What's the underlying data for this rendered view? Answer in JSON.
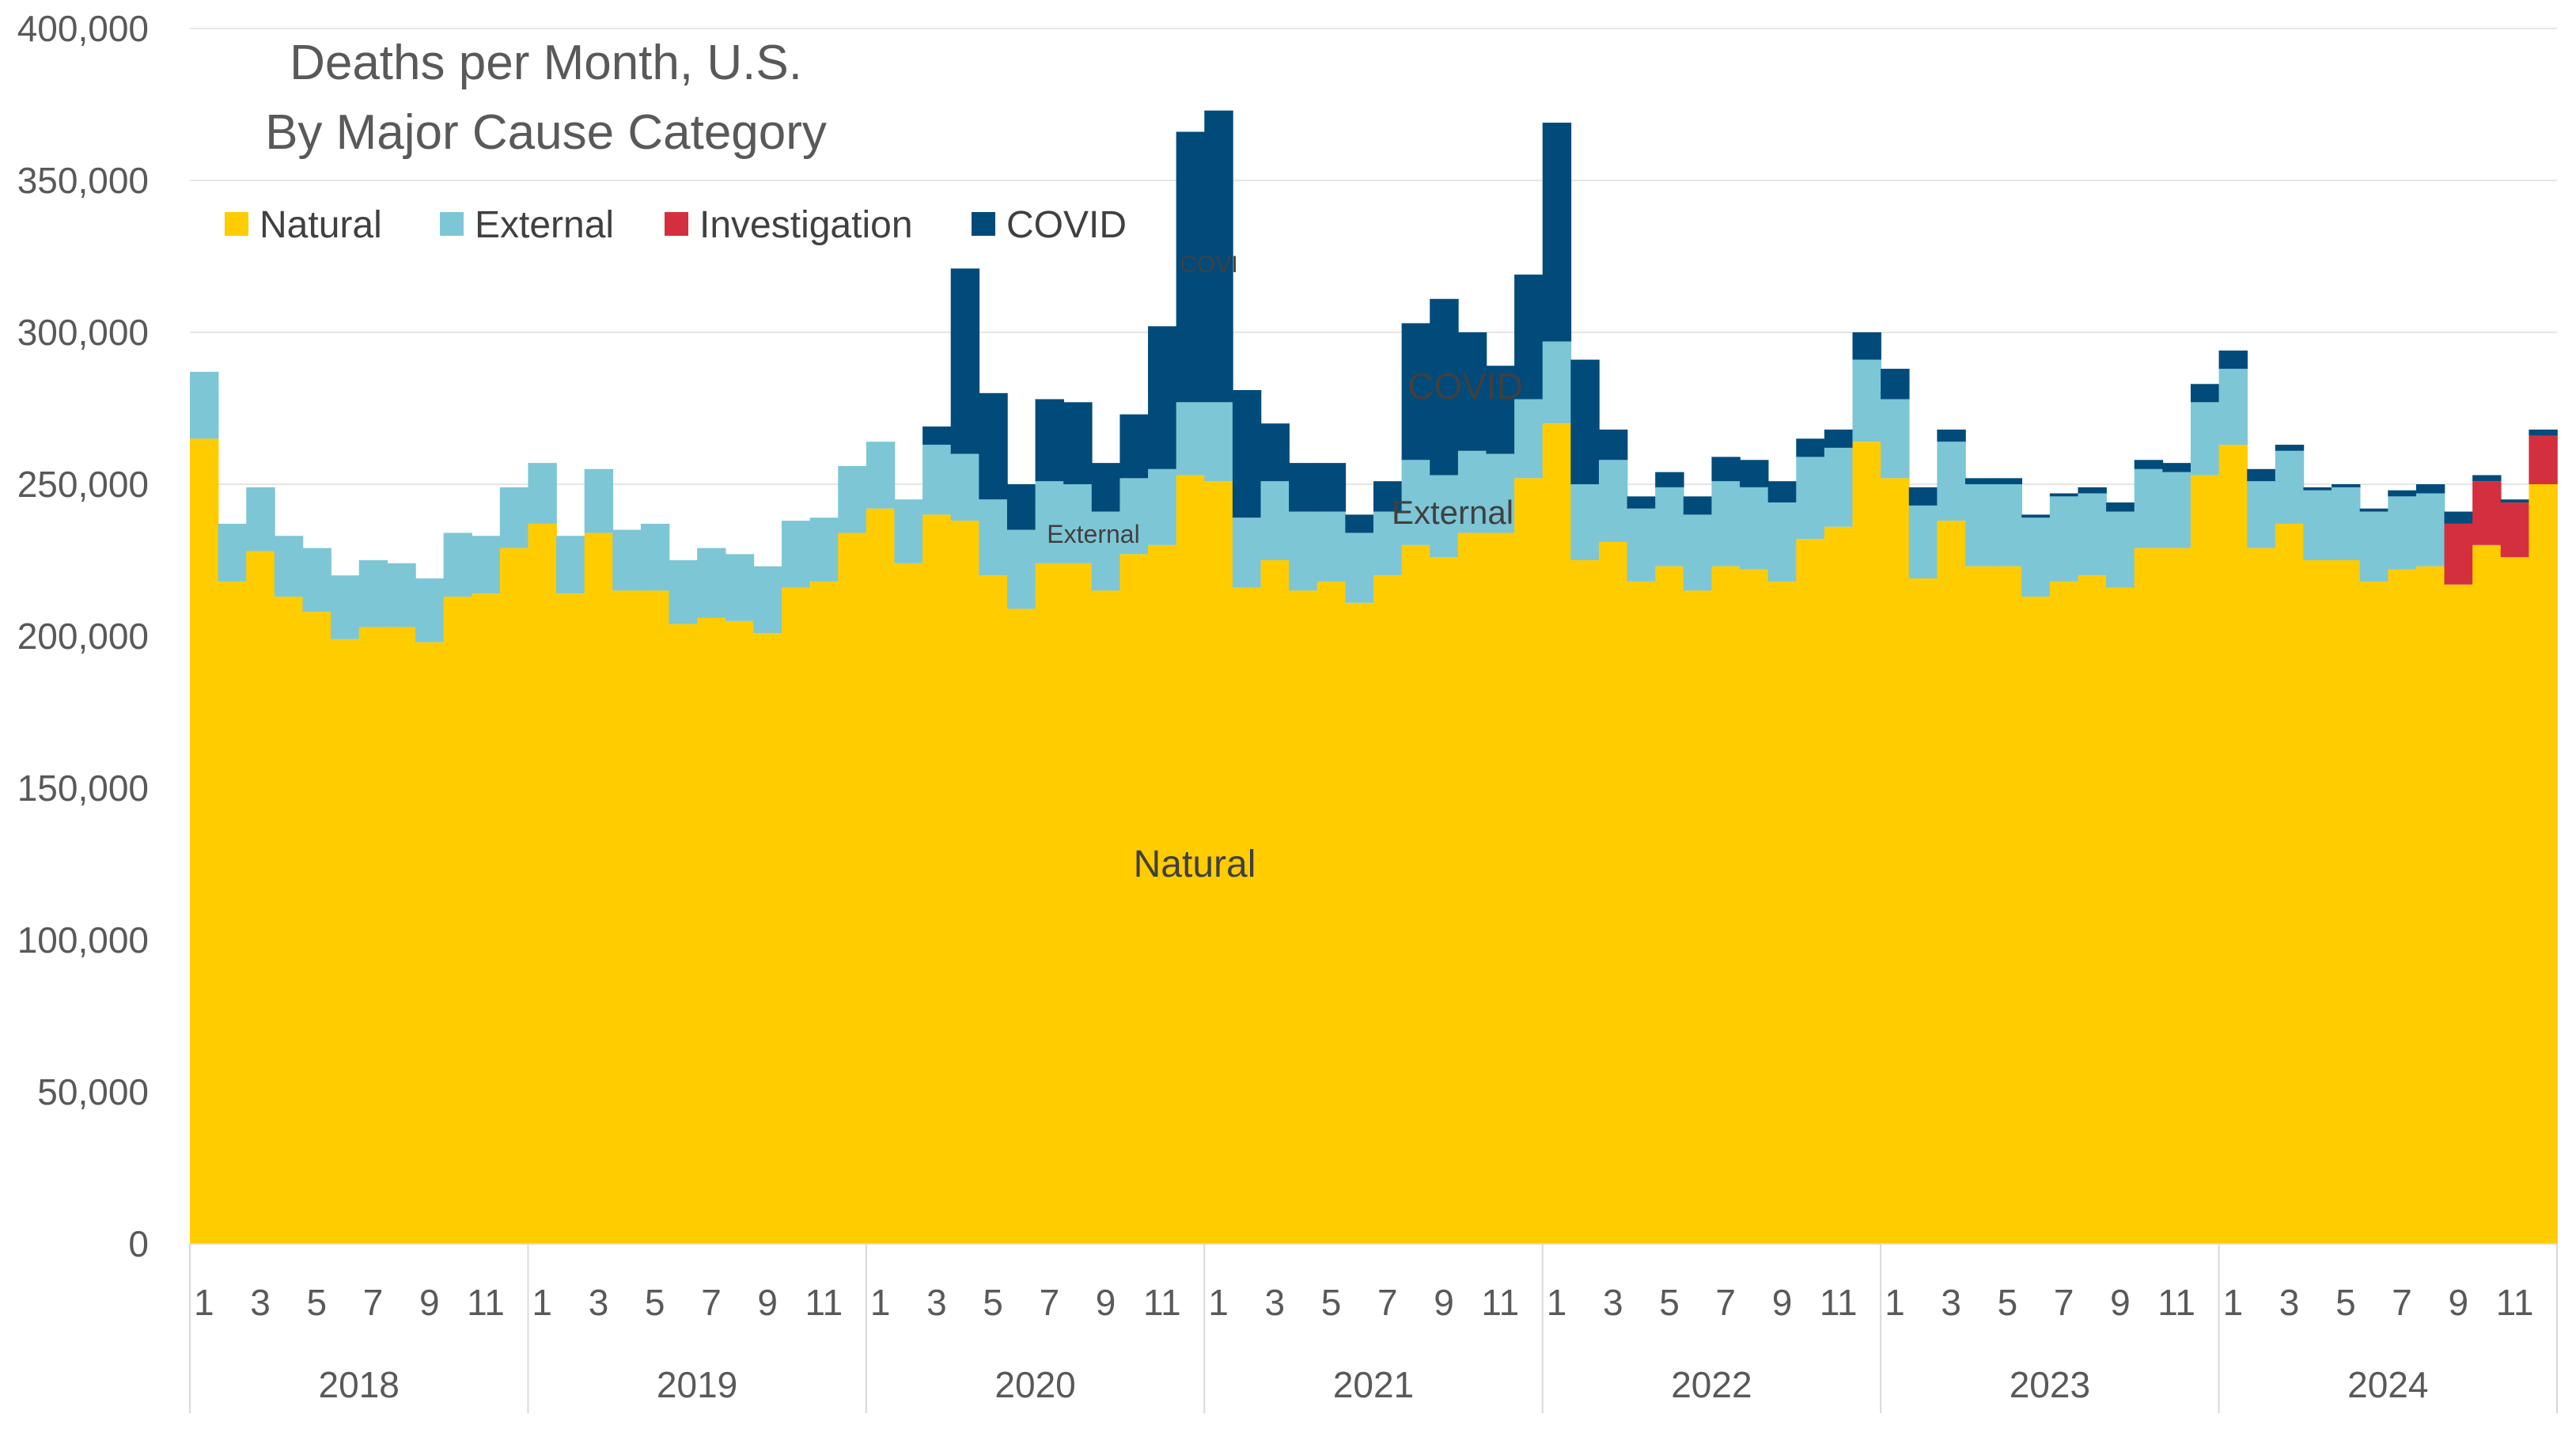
{
  "chart_data": {
    "type": "bar",
    "stacked": true,
    "title": "Deaths per Month, U.S.",
    "subtitle": "By Major Cause Category",
    "ylim": [
      0,
      400000
    ],
    "yticks": [
      0,
      50000,
      100000,
      150000,
      200000,
      250000,
      300000,
      350000,
      400000
    ],
    "ytick_labels": [
      "0",
      "50,000",
      "100,000",
      "150,000",
      "200,000",
      "250,000",
      "300,000",
      "350,000",
      "400,000"
    ],
    "years": [
      "2018",
      "2019",
      "2020",
      "2021",
      "2022",
      "2023",
      "2024"
    ],
    "month_tick_labels": [
      "1",
      "3",
      "5",
      "7",
      "9",
      "11"
    ],
    "grid": "horizontal",
    "legend_position": "top-left",
    "series": [
      {
        "name": "Natural",
        "color": "#FFCC00",
        "values": [
          265000,
          218000,
          228000,
          213000,
          208000,
          199000,
          203000,
          203000,
          198000,
          213000,
          214000,
          229000,
          237000,
          214000,
          234000,
          215000,
          215000,
          204000,
          206000,
          205000,
          201000,
          216000,
          218000,
          234000,
          242000,
          224000,
          240000,
          238000,
          220000,
          209000,
          224000,
          224000,
          215000,
          227000,
          230000,
          253000,
          251000,
          216000,
          225000,
          215000,
          218000,
          211000,
          220000,
          230000,
          226000,
          234000,
          234000,
          252000,
          270000,
          225000,
          231000,
          218000,
          223000,
          215000,
          223000,
          222000,
          218000,
          232000,
          236000,
          264000,
          252000,
          219000,
          238000,
          223000,
          223000,
          213000,
          218000,
          220000,
          216000,
          229000,
          229000,
          253000,
          263000,
          229000,
          237000,
          225000,
          225000,
          218000,
          222000,
          223000,
          217000,
          230000,
          226000,
          250000
        ]
      },
      {
        "name": "External",
        "color": "#7DC6D6",
        "values": [
          22000,
          19000,
          21000,
          20000,
          21000,
          21000,
          22000,
          21000,
          21000,
          21000,
          19000,
          20000,
          20000,
          19000,
          21000,
          20000,
          22000,
          21000,
          23000,
          22000,
          22000,
          22000,
          21000,
          22000,
          22000,
          21000,
          23000,
          22000,
          25000,
          26000,
          27000,
          26000,
          26000,
          25000,
          25000,
          24000,
          26000,
          23000,
          26000,
          26000,
          23000,
          23000,
          21000,
          28000,
          27000,
          27000,
          26000,
          26000,
          27000,
          25000,
          27000,
          24000,
          26000,
          25000,
          28000,
          27000,
          26000,
          27000,
          26000,
          27000,
          26000,
          24000,
          26000,
          27000,
          27000,
          26000,
          28000,
          27000,
          25000,
          26000,
          25000,
          24000,
          25000,
          22000,
          24000,
          23000,
          24000,
          23000,
          24000,
          24000,
          0,
          0,
          0,
          0
        ]
      },
      {
        "name": "Investigation",
        "color": "#D42F3E",
        "values": [
          0,
          0,
          0,
          0,
          0,
          0,
          0,
          0,
          0,
          0,
          0,
          0,
          0,
          0,
          0,
          0,
          0,
          0,
          0,
          0,
          0,
          0,
          0,
          0,
          0,
          0,
          0,
          0,
          0,
          0,
          0,
          0,
          0,
          0,
          0,
          0,
          0,
          0,
          0,
          0,
          0,
          0,
          0,
          0,
          0,
          0,
          0,
          0,
          0,
          0,
          0,
          0,
          0,
          0,
          0,
          0,
          0,
          0,
          0,
          0,
          0,
          0,
          0,
          0,
          0,
          0,
          0,
          0,
          0,
          0,
          0,
          0,
          0,
          0,
          0,
          0,
          0,
          0,
          0,
          0,
          20000,
          21000,
          18000,
          16000
        ]
      },
      {
        "name": "COVID",
        "color": "#004B7A",
        "values": [
          0,
          0,
          0,
          0,
          0,
          0,
          0,
          0,
          0,
          0,
          0,
          0,
          0,
          0,
          0,
          0,
          0,
          0,
          0,
          0,
          0,
          0,
          0,
          0,
          0,
          0,
          6000,
          61000,
          35000,
          15000,
          27000,
          27000,
          16000,
          21000,
          47000,
          89000,
          96000,
          42000,
          19000,
          16000,
          16000,
          6000,
          10000,
          45000,
          58000,
          39000,
          29000,
          41000,
          72000,
          41000,
          10000,
          4000,
          5000,
          6000,
          8000,
          9000,
          7000,
          6000,
          6000,
          9000,
          10000,
          6000,
          4000,
          2000,
          2000,
          1000,
          1000,
          2000,
          3000,
          3000,
          3000,
          6000,
          6000,
          4000,
          2000,
          1000,
          1000,
          1000,
          2000,
          3000,
          4000,
          2000,
          1000,
          2000
        ]
      }
    ],
    "annotations": [
      {
        "text": "Natural",
        "series": "Natural"
      },
      {
        "text": "External",
        "series": "External"
      },
      {
        "text": "External",
        "series": "External"
      },
      {
        "text": "COVID",
        "series": "COVID"
      },
      {
        "text": "COVI",
        "series": "COVID"
      }
    ]
  }
}
